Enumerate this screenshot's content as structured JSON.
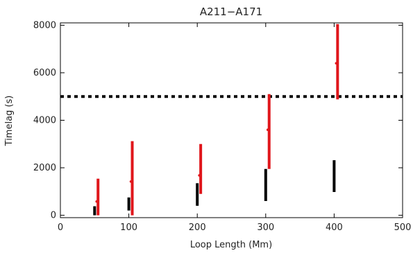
{
  "chart_data": {
    "type": "scatter",
    "title": "A211−A171",
    "xlabel": "Loop Length (Mm)",
    "ylabel": "Timelag (s)",
    "xlim": [
      0,
      500
    ],
    "ylim": [
      -100,
      8100
    ],
    "xticks": [
      0,
      100,
      200,
      300,
      400,
      500
    ],
    "yticks": [
      0,
      2000,
      4000,
      6000,
      8000
    ],
    "grid": false,
    "reference_line": {
      "y": 5000,
      "style": "dotted",
      "color": "#000000"
    },
    "series": [
      {
        "color": "#000000",
        "points": [
          {
            "x": 50,
            "low": 0,
            "high": 380
          },
          {
            "x": 100,
            "low": 200,
            "high": 750
          },
          {
            "x": 200,
            "low": 400,
            "high": 1350
          },
          {
            "x": 300,
            "low": 600,
            "high": 1950
          },
          {
            "x": 400,
            "low": 980,
            "high": 2320
          }
        ]
      },
      {
        "color": "#e0161b",
        "points": [
          {
            "x": 55,
            "low": 0,
            "high": 1540,
            "mid": 580
          },
          {
            "x": 105,
            "low": 0,
            "high": 3120,
            "mid": 1420
          },
          {
            "x": 205,
            "low": 900,
            "high": 3000,
            "mid": 1680
          },
          {
            "x": 305,
            "low": 1950,
            "high": 5100,
            "mid": 3600
          },
          {
            "x": 405,
            "low": 4880,
            "high": 8050,
            "mid": 6400
          }
        ]
      }
    ]
  }
}
